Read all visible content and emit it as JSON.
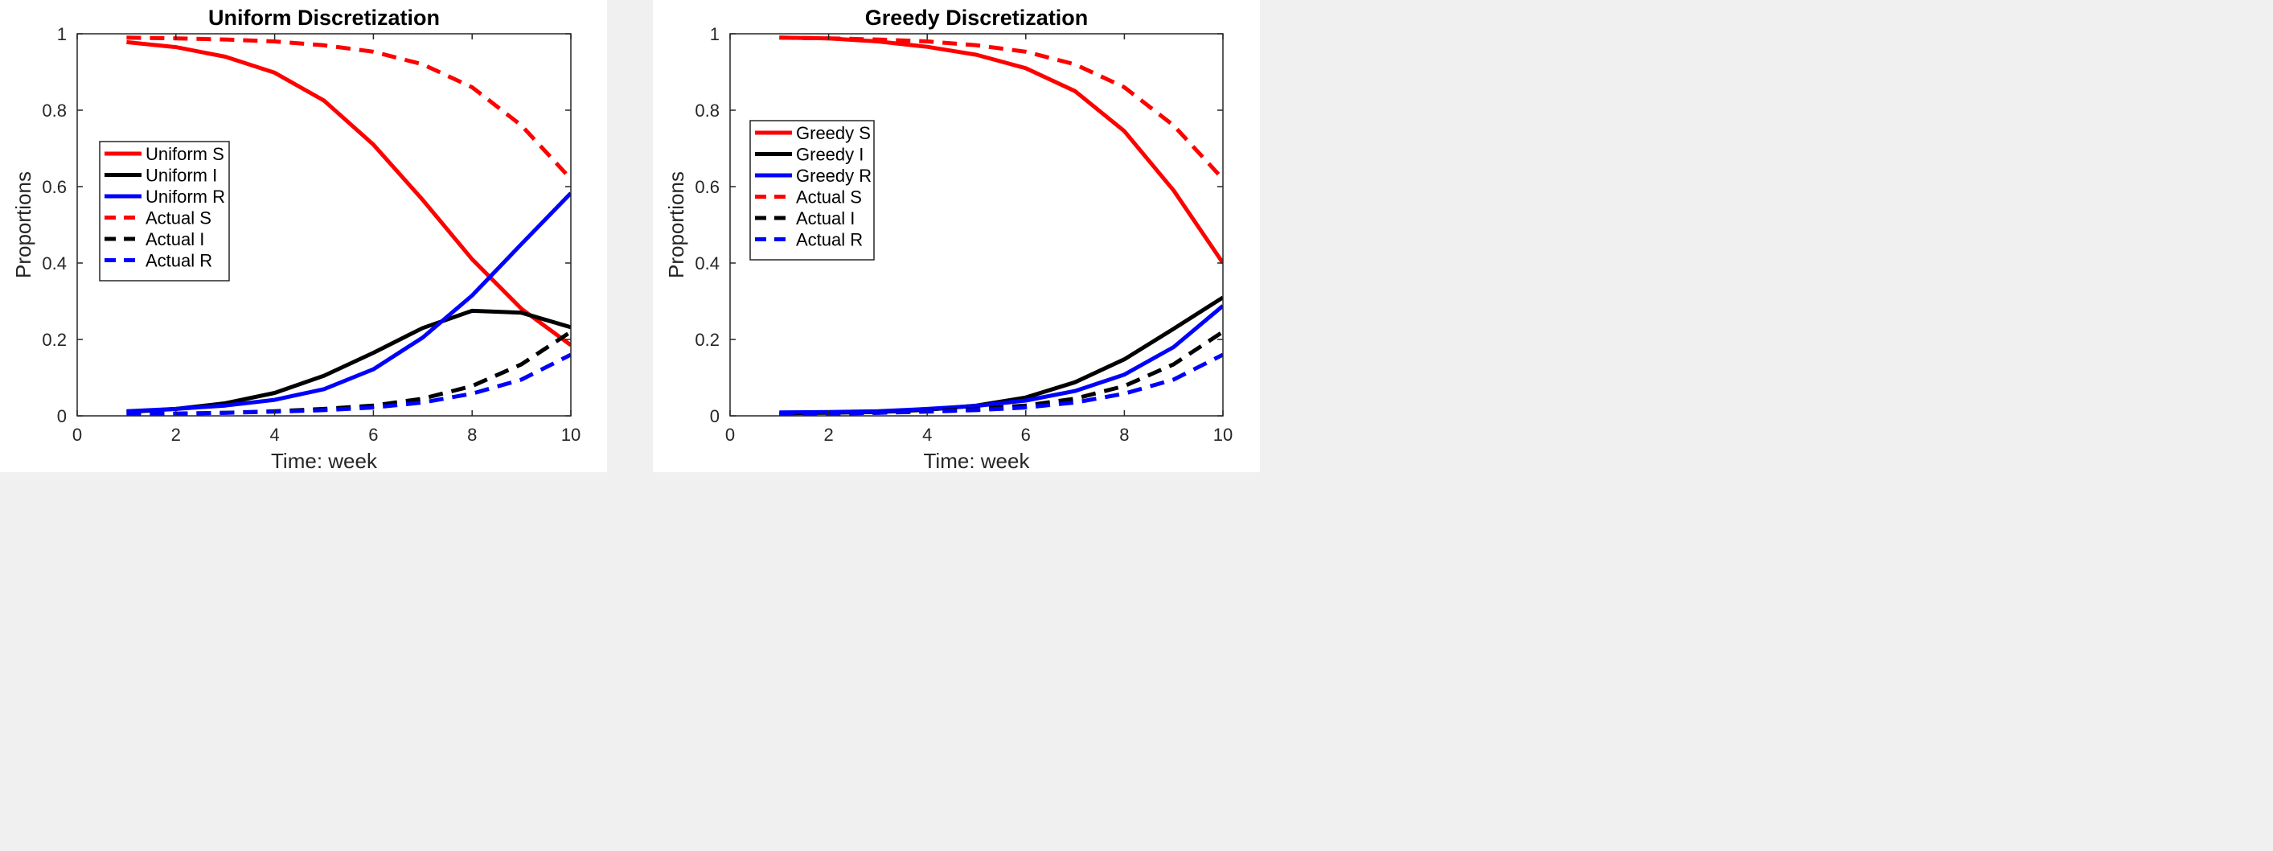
{
  "chart_data": [
    {
      "type": "line",
      "title": "Uniform Discretization",
      "xlabel": "Time: week",
      "ylabel": "Proportions",
      "xlim": [
        0,
        10
      ],
      "ylim": [
        0,
        1
      ],
      "xticks": [
        0,
        2,
        4,
        6,
        8,
        10
      ],
      "yticks": [
        0,
        0.2,
        0.4,
        0.6,
        0.8,
        1
      ],
      "grid": false,
      "legend_position": "left",
      "x": [
        1,
        2,
        3,
        4,
        5,
        6,
        7,
        8,
        9,
        10
      ],
      "series": [
        {
          "name": "Uniform S",
          "color": "#ff0000",
          "style": "solid",
          "values": [
            0.978,
            0.965,
            0.94,
            0.898,
            0.825,
            0.71,
            0.565,
            0.41,
            0.28,
            0.185
          ]
        },
        {
          "name": "Uniform I",
          "color": "#000000",
          "style": "solid",
          "values": [
            0.01,
            0.018,
            0.033,
            0.06,
            0.105,
            0.165,
            0.23,
            0.275,
            0.27,
            0.232
          ]
        },
        {
          "name": "Uniform R",
          "color": "#0000ff",
          "style": "solid",
          "values": [
            0.012,
            0.018,
            0.027,
            0.042,
            0.07,
            0.122,
            0.205,
            0.315,
            0.45,
            0.583
          ]
        },
        {
          "name": "Actual S",
          "color": "#ff0000",
          "style": "dashed",
          "values": [
            0.99,
            0.988,
            0.985,
            0.98,
            0.97,
            0.953,
            0.92,
            0.86,
            0.76,
            0.62
          ]
        },
        {
          "name": "Actual I",
          "color": "#000000",
          "style": "dashed",
          "values": [
            0.003,
            0.005,
            0.008,
            0.012,
            0.018,
            0.027,
            0.045,
            0.078,
            0.135,
            0.22
          ]
        },
        {
          "name": "Actual R",
          "color": "#0000ff",
          "style": "dashed",
          "values": [
            0.004,
            0.006,
            0.008,
            0.011,
            0.015,
            0.022,
            0.035,
            0.058,
            0.095,
            0.16
          ]
        }
      ]
    },
    {
      "type": "line",
      "title": "Greedy Discretization",
      "xlabel": "Time: week",
      "ylabel": "Proportions",
      "xlim": [
        0,
        10
      ],
      "ylim": [
        0,
        1
      ],
      "xticks": [
        0,
        2,
        4,
        6,
        8,
        10
      ],
      "yticks": [
        0,
        0.2,
        0.4,
        0.6,
        0.8,
        1
      ],
      "grid": false,
      "legend_position": "top-left",
      "x": [
        1,
        2,
        3,
        4,
        5,
        6,
        7,
        8,
        9,
        10
      ],
      "series": [
        {
          "name": "Greedy S",
          "color": "#ff0000",
          "style": "solid",
          "values": [
            0.99,
            0.988,
            0.98,
            0.966,
            0.945,
            0.91,
            0.85,
            0.745,
            0.59,
            0.4
          ]
        },
        {
          "name": "Greedy I",
          "color": "#000000",
          "style": "solid",
          "values": [
            0.006,
            0.008,
            0.01,
            0.016,
            0.027,
            0.048,
            0.088,
            0.148,
            0.228,
            0.31
          ]
        },
        {
          "name": "Greedy R",
          "color": "#0000ff",
          "style": "solid",
          "values": [
            0.009,
            0.01,
            0.012,
            0.018,
            0.026,
            0.04,
            0.065,
            0.108,
            0.18,
            0.288
          ]
        },
        {
          "name": "Actual S",
          "color": "#ff0000",
          "style": "dashed",
          "values": [
            0.99,
            0.988,
            0.985,
            0.98,
            0.97,
            0.953,
            0.92,
            0.86,
            0.76,
            0.62
          ]
        },
        {
          "name": "Actual I",
          "color": "#000000",
          "style": "dashed",
          "values": [
            0.003,
            0.005,
            0.008,
            0.012,
            0.018,
            0.027,
            0.045,
            0.078,
            0.135,
            0.22
          ]
        },
        {
          "name": "Actual R",
          "color": "#0000ff",
          "style": "dashed",
          "values": [
            0.004,
            0.006,
            0.008,
            0.011,
            0.015,
            0.022,
            0.035,
            0.058,
            0.095,
            0.16
          ]
        }
      ]
    }
  ]
}
